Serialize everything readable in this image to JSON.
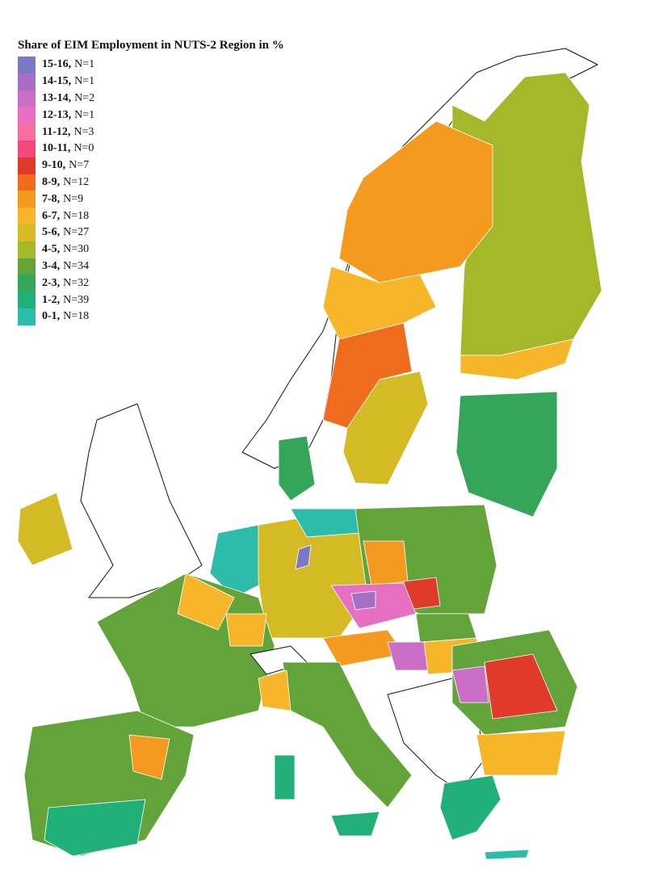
{
  "title": "Share of EIM Employment in NUTS-2 Region in %",
  "legend": [
    {
      "range": "15-16",
      "count": "N=1",
      "color": "#7b78c8"
    },
    {
      "range": "14-15",
      "count": "N=1",
      "color": "#a56fc8"
    },
    {
      "range": "13-14",
      "count": "N=2",
      "color": "#cb6ec8"
    },
    {
      "range": "12-13",
      "count": "N=1",
      "color": "#e76fc1"
    },
    {
      "range": "11-12",
      "count": "N=3",
      "color": "#f46fa0"
    },
    {
      "range": "10-11",
      "count": "N=0",
      "color": "#f04a7a"
    },
    {
      "range": "9-10",
      "count": "N=7",
      "color": "#e03a2a"
    },
    {
      "range": "8-9",
      "count": "N=12",
      "color": "#ef6c1e"
    },
    {
      "range": "7-8",
      "count": "N=9",
      "color": "#f49a1e"
    },
    {
      "range": "6-7",
      "count": "N=18",
      "color": "#f7b62a"
    },
    {
      "range": "5-6",
      "count": "N=27",
      "color": "#d4bb26"
    },
    {
      "range": "4-5",
      "count": "N=30",
      "color": "#a4b82a"
    },
    {
      "range": "3-4",
      "count": "N=34",
      "color": "#62a33a"
    },
    {
      "range": "2-3",
      "count": "N=32",
      "color": "#35a55a"
    },
    {
      "range": "1-2",
      "count": "N=39",
      "color": "#22b07a"
    },
    {
      "range": "0-1",
      "count": "N=18",
      "color": "#2ebcaa"
    }
  ]
}
